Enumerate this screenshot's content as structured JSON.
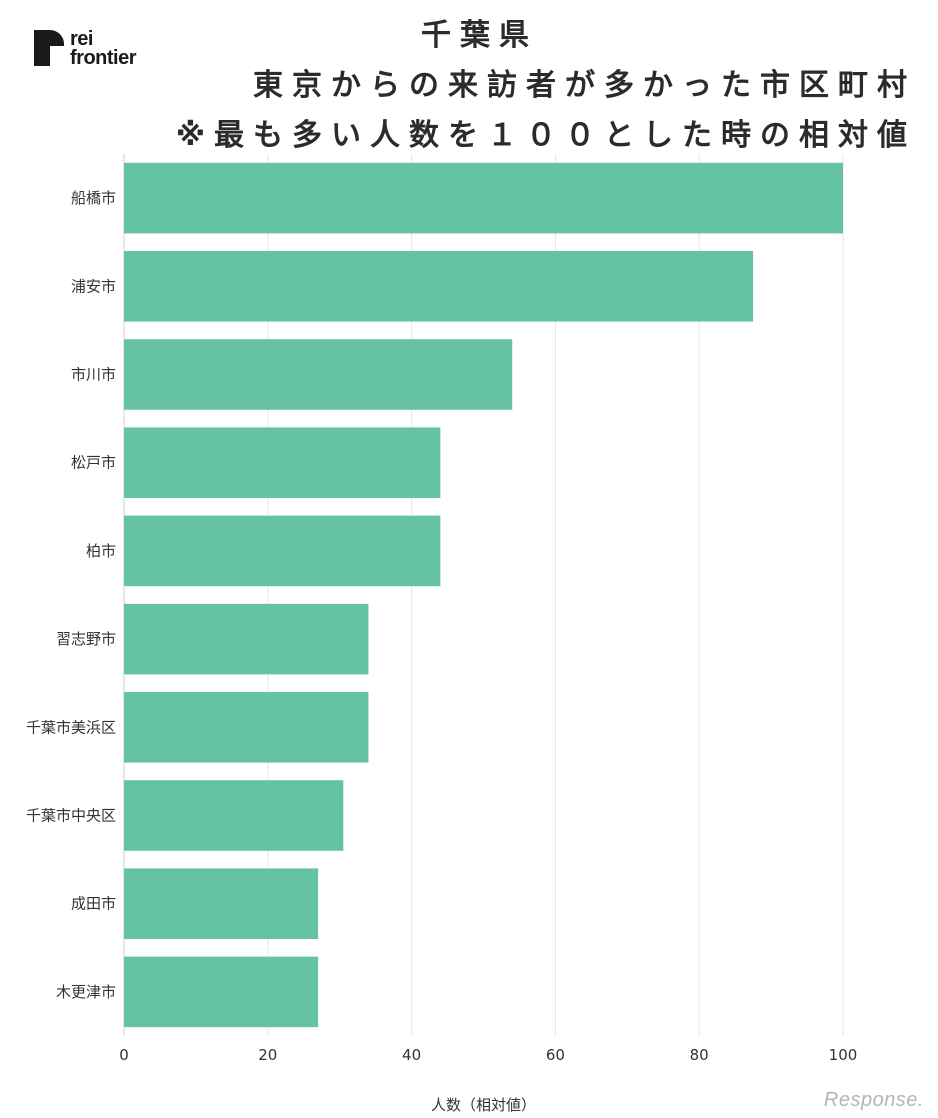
{
  "logo": {
    "line1": "rei",
    "line2": "frontier"
  },
  "title_lines": [
    "千葉県",
    "東京からの来訪者が多かった市区町村",
    "※最も多い人数を１００とした時の相対値"
  ],
  "watermark": "Response.",
  "colors": {
    "bar": "#66c2a5",
    "grid": "#e6e6e6",
    "axis": "#333333"
  },
  "chart_data": {
    "type": "bar",
    "orientation": "horizontal",
    "title": "千葉県 東京からの来訪者が多かった市区町村 ※最も多い人数を１００とした時の相対値",
    "categories": [
      "船橋市",
      "浦安市",
      "市川市",
      "松戸市",
      "柏市",
      "習志野市",
      "千葉市美浜区",
      "千葉市中央区",
      "成田市",
      "木更津市"
    ],
    "values": [
      100,
      87.5,
      54,
      44,
      44,
      34,
      34,
      30.5,
      27,
      27
    ],
    "xlabel": "人数（相対値）",
    "ylabel": "",
    "xlim": [
      0,
      100
    ],
    "xticks": [
      0,
      20,
      40,
      60,
      80,
      100
    ],
    "grid": true,
    "legend": "none"
  }
}
